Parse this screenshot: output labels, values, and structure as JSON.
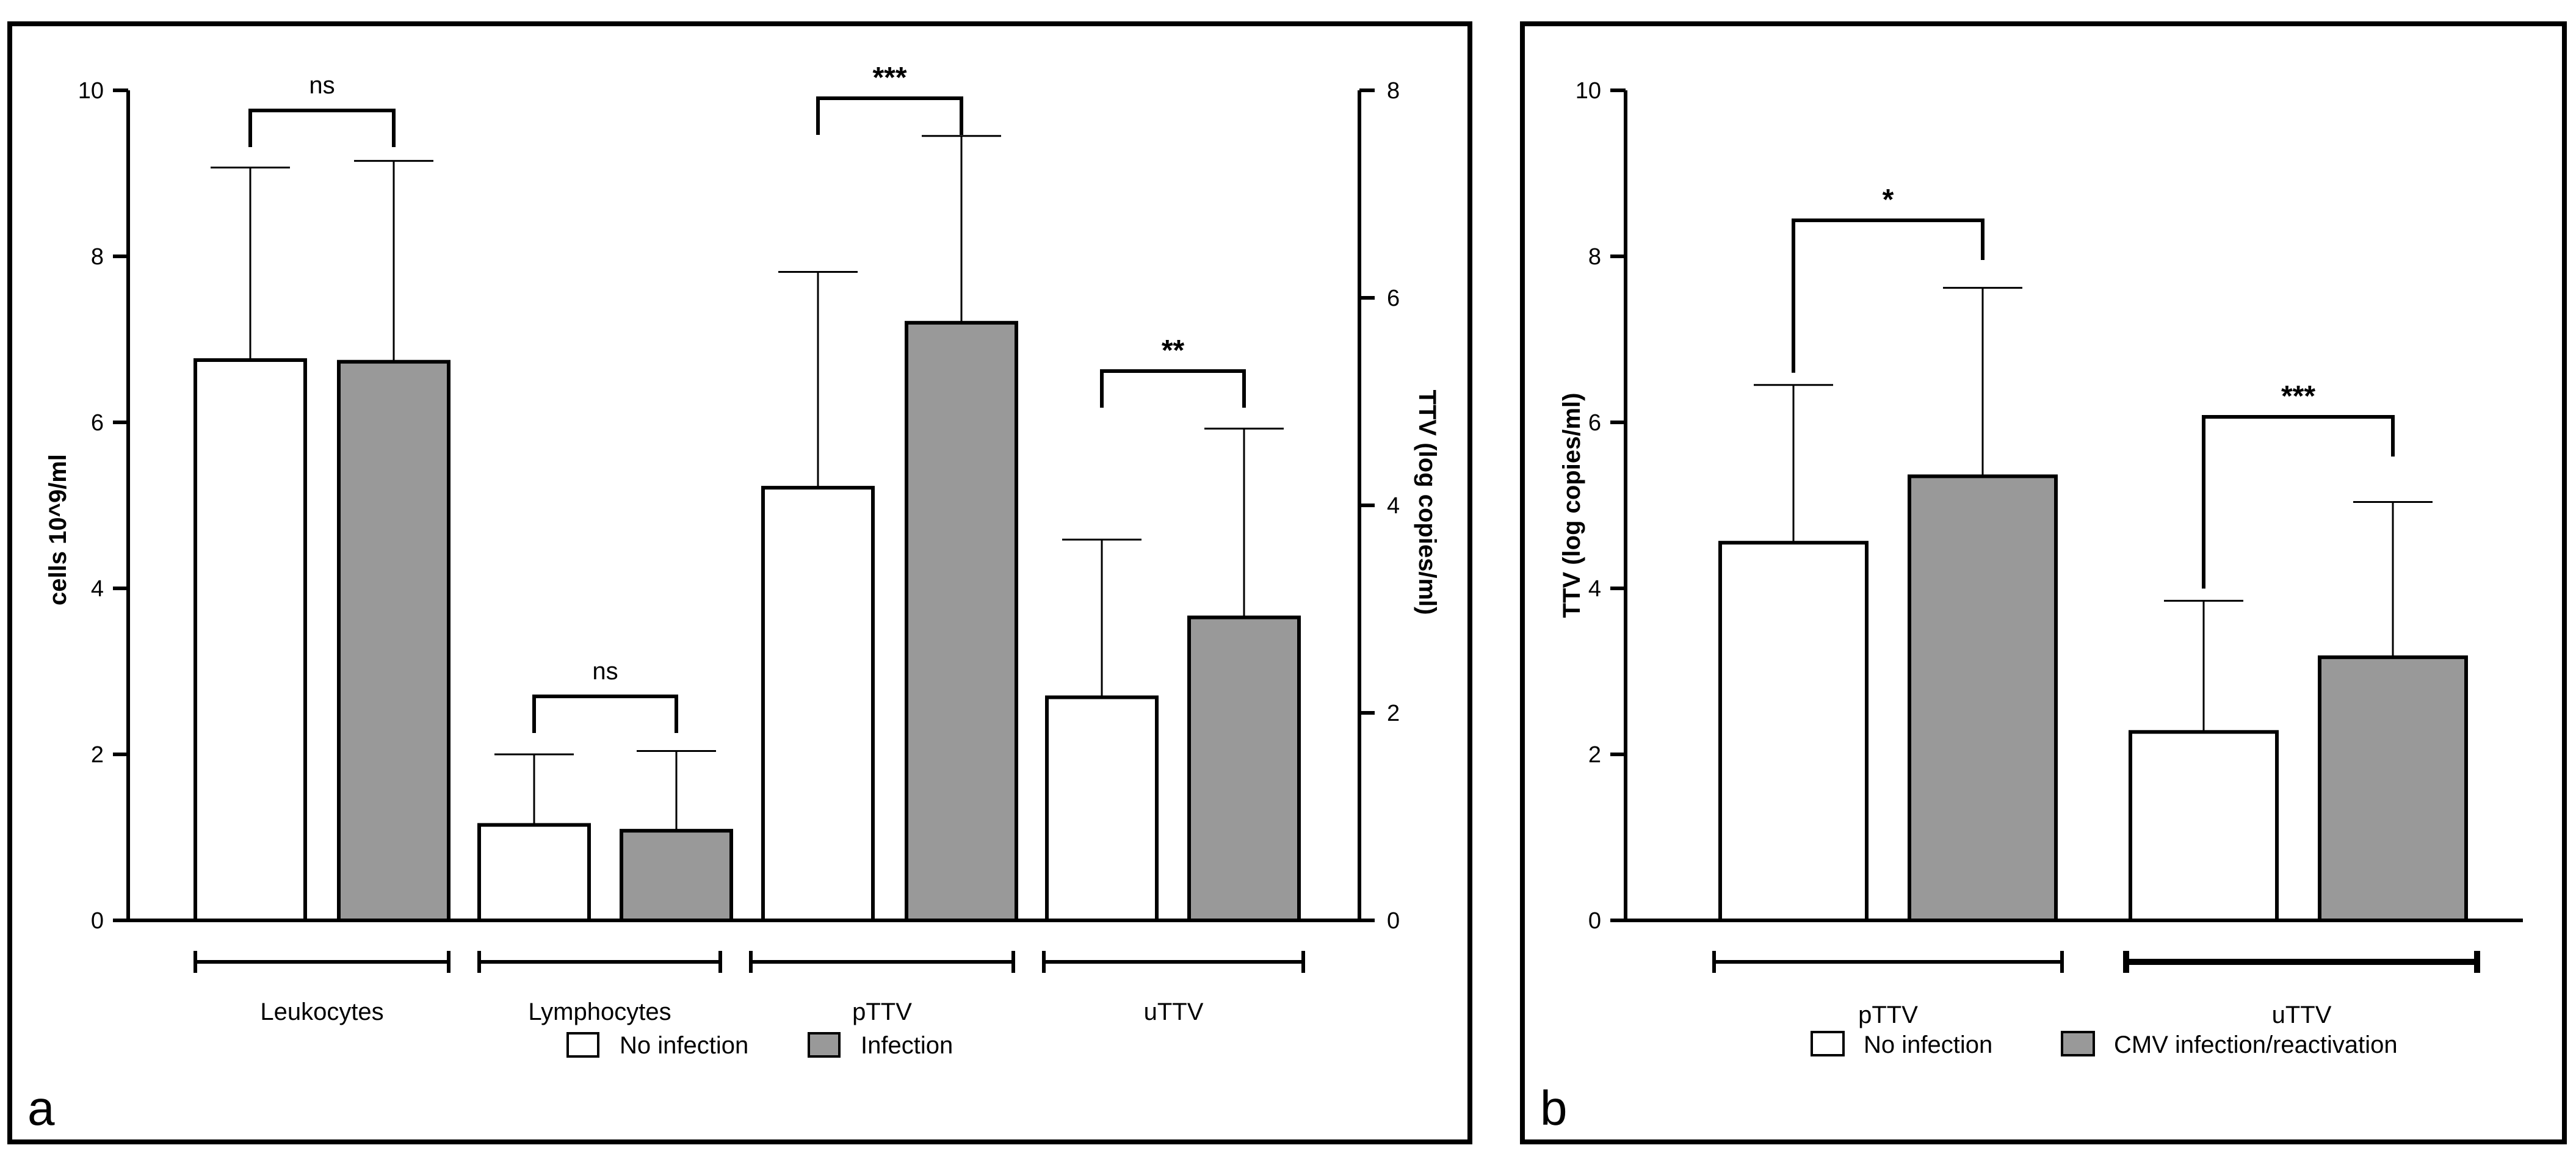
{
  "chart_data": [
    {
      "type": "bar",
      "panel": "a",
      "panel_label": "a",
      "categories": [
        "Leukocytes",
        "Lymphocytes",
        "pTTV",
        "uTTV"
      ],
      "left_axis": {
        "label": "cells 10^9/ml",
        "range": [
          0,
          10
        ],
        "ticks": [
          "0",
          "2",
          "4",
          "6",
          "8",
          "10"
        ]
      },
      "right_axis": {
        "label": "TTV (log copies/ml)",
        "range": [
          0,
          8
        ],
        "ticks": [
          "0",
          "2",
          "4",
          "6",
          "8"
        ]
      },
      "series": [
        {
          "name": "No infection",
          "color": "#ffffff",
          "values_left_axis": [
            6.75,
            1.15,
            null,
            null
          ],
          "errors_left_axis": [
            2.32,
            0.85,
            null,
            null
          ],
          "values_right_axis": [
            null,
            null,
            4.17,
            2.15
          ],
          "errors_right_axis": [
            null,
            null,
            2.08,
            1.52
          ]
        },
        {
          "name": "Infection",
          "color": "#999999",
          "values_left_axis": [
            6.73,
            1.08,
            null,
            null
          ],
          "errors_left_axis": [
            2.42,
            0.96,
            null,
            null
          ],
          "values_right_axis": [
            null,
            null,
            5.76,
            2.92
          ],
          "errors_right_axis": [
            null,
            null,
            1.8,
            1.82
          ]
        }
      ],
      "significance": [
        "ns",
        "ns",
        "***",
        "**"
      ],
      "legend": [
        "No infection",
        "Infection"
      ]
    },
    {
      "type": "bar",
      "panel": "b",
      "panel_label": "b",
      "categories": [
        "pTTV",
        "uTTV"
      ],
      "y_axis": {
        "label": "TTV (log copies/ml)",
        "range": [
          0,
          10
        ],
        "ticks": [
          "0",
          "2",
          "4",
          "6",
          "8",
          "10"
        ]
      },
      "series": [
        {
          "name": "No infection",
          "color": "#ffffff",
          "values": [
            4.55,
            2.27
          ],
          "errors": [
            1.9,
            1.58
          ]
        },
        {
          "name": "CMV infection/reactivation",
          "color": "#999999",
          "values": [
            5.35,
            3.17
          ],
          "errors": [
            2.27,
            1.87
          ]
        }
      ],
      "significance": [
        "*",
        "***"
      ],
      "legend": [
        "No infection",
        "CMV infection/reactivation"
      ]
    }
  ]
}
